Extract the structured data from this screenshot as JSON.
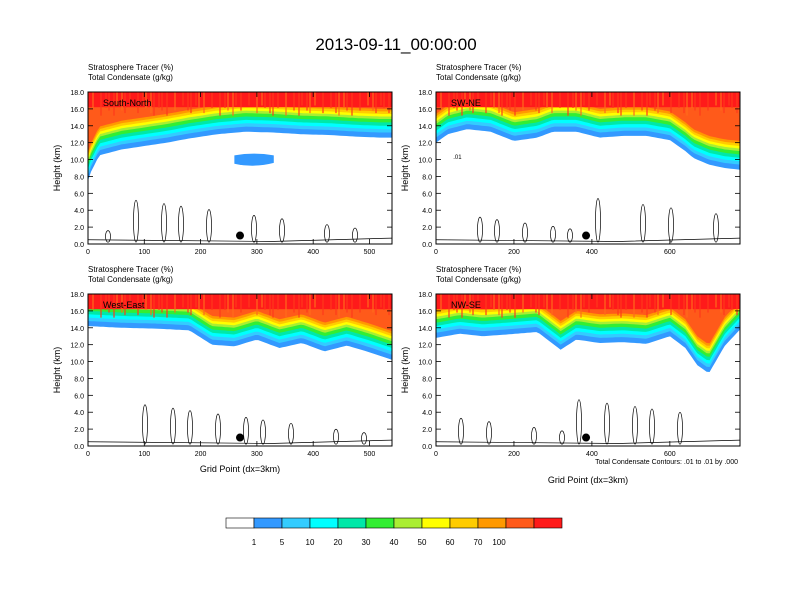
{
  "figure": {
    "title": "2013-09-11_00:00:00",
    "footnote": "Total Condensate Contours: .01 to .01 by .000"
  },
  "colorbar": {
    "labels": [
      "1",
      "5",
      "10",
      "20",
      "30",
      "40",
      "50",
      "60",
      "70",
      "100"
    ],
    "colors": [
      "#ffffff",
      "#3399ff",
      "#33ccff",
      "#00ffff",
      "#00e8a8",
      "#33ee33",
      "#aaee33",
      "#ffff00",
      "#ffcc00",
      "#ff9900",
      "#ff5a1a",
      "#ff1a1a"
    ]
  },
  "chart_data": [
    {
      "type": "heatmap",
      "panel_label": "South-North",
      "title_line1": "Stratosphere Tracer   (%)",
      "title_line2": "Total Condensate   (g/kg)",
      "xlabel": "",
      "ylabel": "Height (km)",
      "xlim": [
        0,
        540
      ],
      "ylim": [
        0,
        18
      ],
      "x_ticks": [
        0,
        100,
        200,
        300,
        400,
        500
      ],
      "y_ticks": [
        "0.0",
        "2.0",
        "4.0",
        "6.0",
        "8.0",
        "10.0",
        "12.0",
        "14.0",
        "16.0",
        "18.0"
      ],
      "tracer_boundary_km": {
        "x": [
          0,
          5,
          20,
          60,
          100,
          140,
          180,
          230,
          280,
          330,
          380,
          430,
          480,
          520,
          540
        ],
        "y": [
          7.5,
          8.5,
          10.5,
          11.2,
          11.6,
          12.0,
          12.5,
          13.0,
          13.3,
          13.2,
          13.0,
          12.9,
          12.7,
          12.6,
          12.6
        ]
      },
      "isolated_patch": {
        "x": [
          260,
          330
        ],
        "y": [
          9.0,
          10.5
        ]
      },
      "marker": {
        "x": 270,
        "y": 1.0
      }
    },
    {
      "type": "heatmap",
      "panel_label": "SW-NE",
      "title_line1": "Stratosphere Tracer   (%)",
      "title_line2": "Total Condensate   (g/kg)",
      "xlabel": "",
      "ylabel": "Height (km)",
      "xlim": [
        0,
        780
      ],
      "ylim": [
        0,
        18
      ],
      "x_ticks": [
        0,
        200,
        400,
        600
      ],
      "y_ticks": [
        "0.0",
        "2.0",
        "4.0",
        "6.0",
        "8.0",
        "10.0",
        "12.0",
        "14.0",
        "16.0",
        "18.0"
      ],
      "tracer_boundary_km": {
        "x": [
          0,
          30,
          80,
          140,
          200,
          260,
          300,
          360,
          420,
          480,
          540,
          600,
          640,
          660,
          700,
          740,
          780
        ],
        "y": [
          12.0,
          13.0,
          13.6,
          13.3,
          12.2,
          12.6,
          13.3,
          13.3,
          12.6,
          12.8,
          12.8,
          12.3,
          11.0,
          10.2,
          9.4,
          9.0,
          8.8
        ]
      },
      "contour_label": ".01",
      "marker": {
        "x": 385,
        "y": 1.0
      }
    },
    {
      "type": "heatmap",
      "panel_label": "West-East",
      "title_line1": "Stratosphere Tracer   (%)",
      "title_line2": "Total Condensate   (g/kg)",
      "xlabel": "Grid Point (dx=3km)",
      "ylabel": "Height (km)",
      "xlim": [
        0,
        540
      ],
      "ylim": [
        0,
        18
      ],
      "x_ticks": [
        0,
        100,
        200,
        300,
        400,
        500
      ],
      "y_ticks": [
        "0.0",
        "2.0",
        "4.0",
        "6.0",
        "8.0",
        "10.0",
        "12.0",
        "14.0",
        "16.0",
        "18.0"
      ],
      "tracer_boundary_km": {
        "x": [
          0,
          60,
          120,
          180,
          220,
          260,
          300,
          340,
          380,
          420,
          460,
          500,
          540
        ],
        "y": [
          14.2,
          14.0,
          13.9,
          13.7,
          12.0,
          11.8,
          12.6,
          11.6,
          12.2,
          11.2,
          11.9,
          11.1,
          10.2
        ]
      },
      "marker": {
        "x": 270,
        "y": 1.0
      }
    },
    {
      "type": "heatmap",
      "panel_label": "NW-SE",
      "title_line1": "Stratosphere Tracer   (%)",
      "title_line2": "Total Condensate   (g/kg)",
      "xlabel": "Grid Point (dx=3km)",
      "ylabel": "Height (km)",
      "xlim": [
        0,
        780
      ],
      "ylim": [
        0,
        18
      ],
      "x_ticks": [
        0,
        200,
        400,
        600
      ],
      "y_ticks": [
        "0.0",
        "2.0",
        "4.0",
        "6.0",
        "8.0",
        "10.0",
        "12.0",
        "14.0",
        "16.0",
        "18.0"
      ],
      "tracer_boundary_km": {
        "x": [
          0,
          60,
          120,
          180,
          260,
          320,
          360,
          420,
          480,
          540,
          600,
          640,
          670,
          700,
          740,
          780
        ],
        "y": [
          12.8,
          13.3,
          13.0,
          13.2,
          13.5,
          11.4,
          12.6,
          12.2,
          12.3,
          12.1,
          13.0,
          11.6,
          9.6,
          8.6,
          11.8,
          13.8
        ]
      },
      "marker": {
        "x": 385,
        "y": 1.0
      }
    }
  ]
}
